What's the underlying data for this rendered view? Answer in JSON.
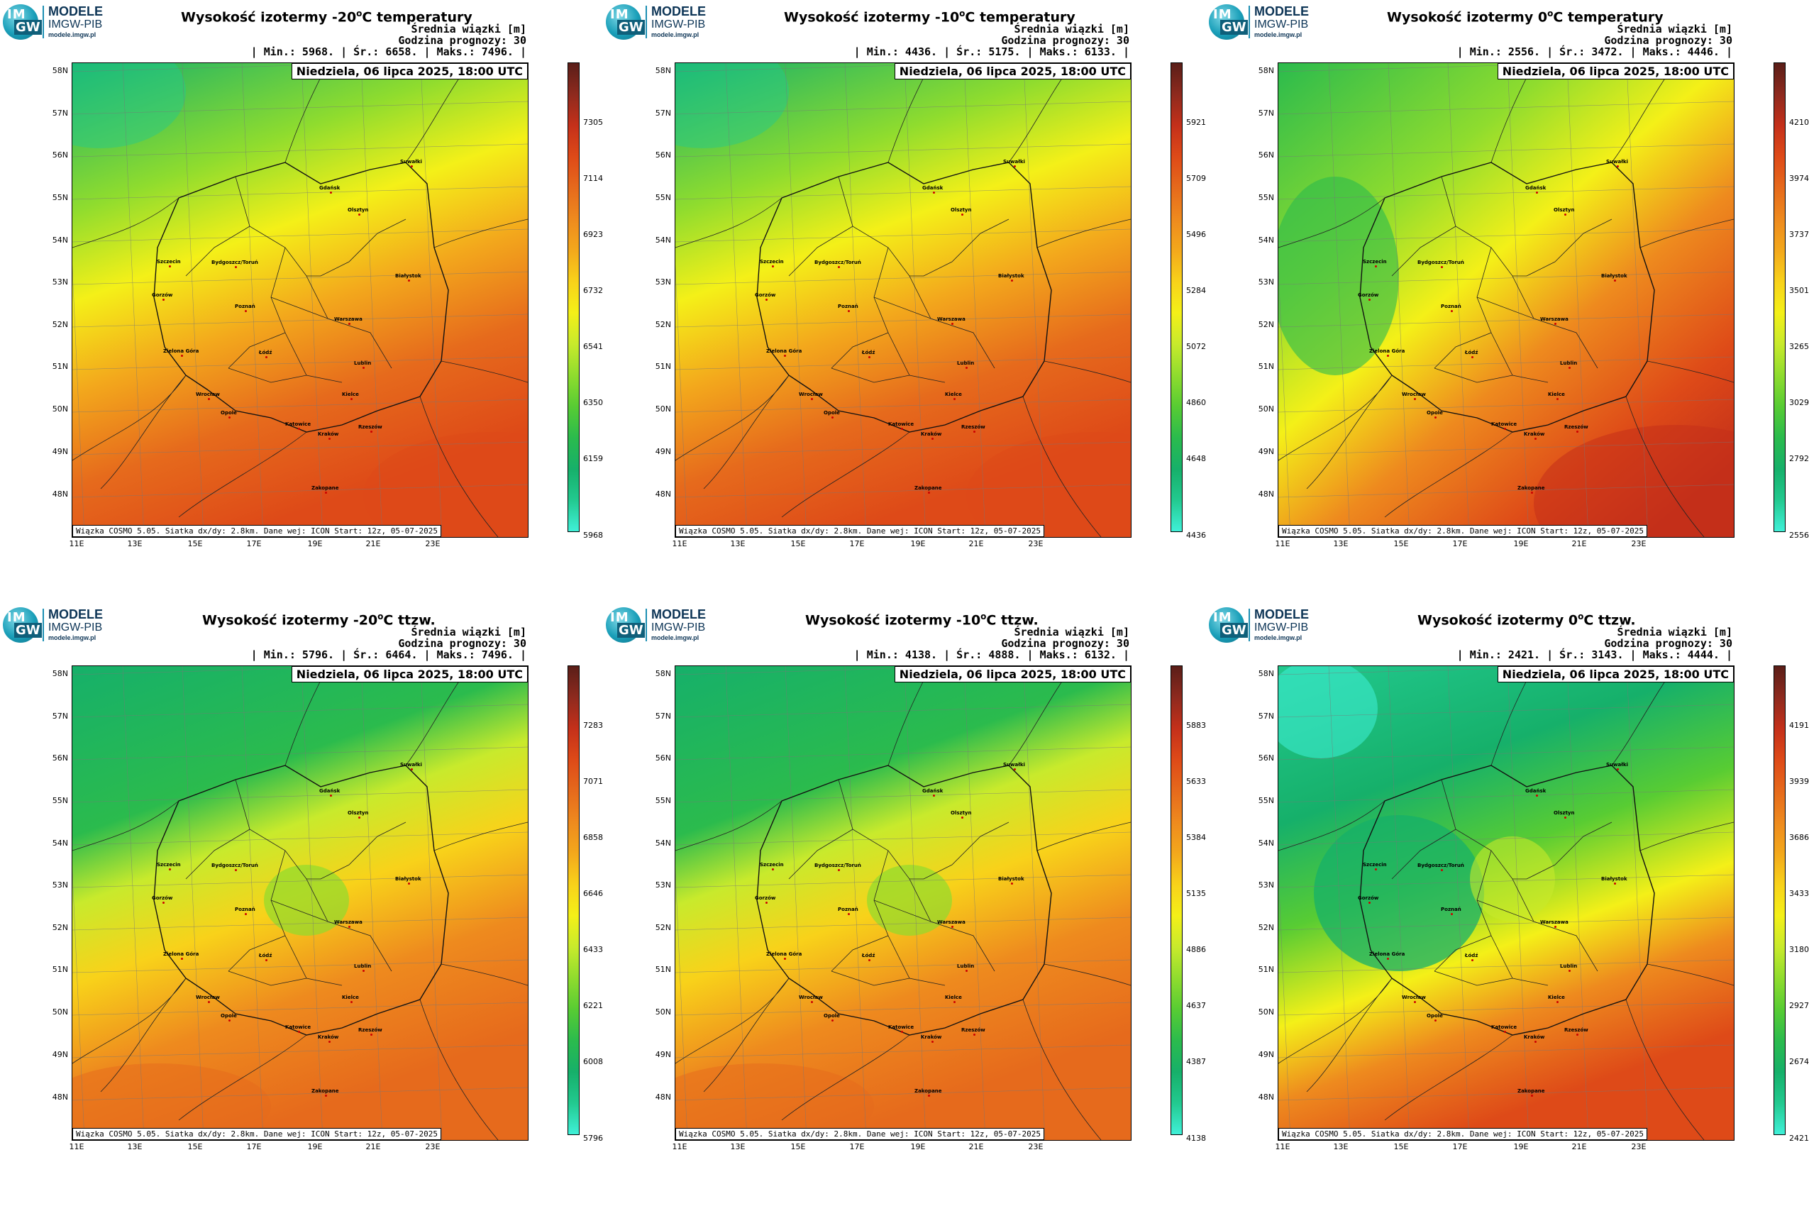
{
  "logo": {
    "top": "IM",
    "bottom": "GW",
    "brand_line1": "MODELE",
    "brand_line2": "IMGW-PIB",
    "brand_line3": "modele.imgw.pl"
  },
  "common": {
    "beam_label": "Średnia wiązki [m]",
    "forecast_hour": "Godzina prognozy: 30",
    "date": "Niedziela, 06 lipca 2025, 18:00 UTC",
    "footer": "Wiązka COSMO 5.05. Siatka dx/dy: 2.8km. Dane wej: ICON Start: 12z, 05-07-2025",
    "lat_labels": [
      "58N",
      "57N",
      "56N",
      "55N",
      "54N",
      "53N",
      "52N",
      "51N",
      "50N",
      "49N",
      "48N"
    ],
    "lon_labels": [
      "11E",
      "13E",
      "15E",
      "17E",
      "19E",
      "21E",
      "23E"
    ],
    "cities": [
      "Gdańsk",
      "Olsztyn",
      "Suwałki",
      "Szczecin",
      "Bydgoszcz/Toruń",
      "Białystok",
      "Gorzów",
      "Poznań",
      "Warszawa",
      "Zielona Góra",
      "Łódź",
      "Lublin",
      "Wrocław",
      "Kielce",
      "Opole",
      "Rzeszów",
      "Katowice",
      "Kraków",
      "Zakopane"
    ]
  },
  "panels": [
    {
      "title_pre": "Wysokość izotermy -20",
      "title_post": "C temperatury",
      "stats": "| Min.: 5968. | Śr.: 6658. | Maks.: 7496. |",
      "ticks": [
        "7305",
        "7114",
        "6923",
        "6732",
        "6541",
        "6350",
        "6159",
        "5968"
      ],
      "scheme": "hot_east"
    },
    {
      "title_pre": "Wysokość izotermy -10",
      "title_post": "C temperatury",
      "stats": "| Min.: 4436. | Śr.: 5175. | Maks.: 6133. |",
      "ticks": [
        "5921",
        "5709",
        "5496",
        "5284",
        "5072",
        "4860",
        "4648",
        "4436"
      ],
      "scheme": "hot_east"
    },
    {
      "title_pre": "Wysokość izotermy 0",
      "title_post": "C temperatury",
      "stats": "| Min.: 2556. | Śr.: 3472. | Maks.: 4446. |",
      "ticks": [
        "4210",
        "3974",
        "3737",
        "3501",
        "3265",
        "3029",
        "2792",
        "2556"
      ],
      "scheme": "hot_se"
    },
    {
      "title_pre": "Wysokość izotermy -20",
      "title_post": "C ttzw.",
      "stats": "| Min.: 5796. | Śr.: 6464. | Maks.: 7496. |",
      "ticks": [
        "7283",
        "7071",
        "6858",
        "6646",
        "6433",
        "6221",
        "6008",
        "5796"
      ],
      "scheme": "band"
    },
    {
      "title_pre": "Wysokość izotermy -10",
      "title_post": "C ttzw.",
      "stats": "| Min.: 4138. | Śr.: 4888. | Maks.: 6132. |",
      "ticks": [
        "5883",
        "5633",
        "5384",
        "5135",
        "4886",
        "4637",
        "4387",
        "4138"
      ],
      "scheme": "band"
    },
    {
      "title_pre": "Wysokość izotermy 0",
      "title_post": "C ttzw.",
      "stats": "| Min.: 2421. | Śr.: 3143. | Maks.: 4444. |",
      "ticks": [
        "4191",
        "3939",
        "3686",
        "3433",
        "3180",
        "2927",
        "2674",
        "2421"
      ],
      "scheme": "green_band"
    }
  ],
  "colors": {
    "scale": [
      "#40f0d8",
      "#22c98f",
      "#16b06a",
      "#2bbb4d",
      "#58cc33",
      "#8fdc2e",
      "#c8ea2c",
      "#f4f018",
      "#f8d21a",
      "#f3a81c",
      "#ee8a1e",
      "#e66a1c",
      "#de4a18",
      "#c4301a",
      "#8e2a1e",
      "#5a1e18"
    ]
  }
}
